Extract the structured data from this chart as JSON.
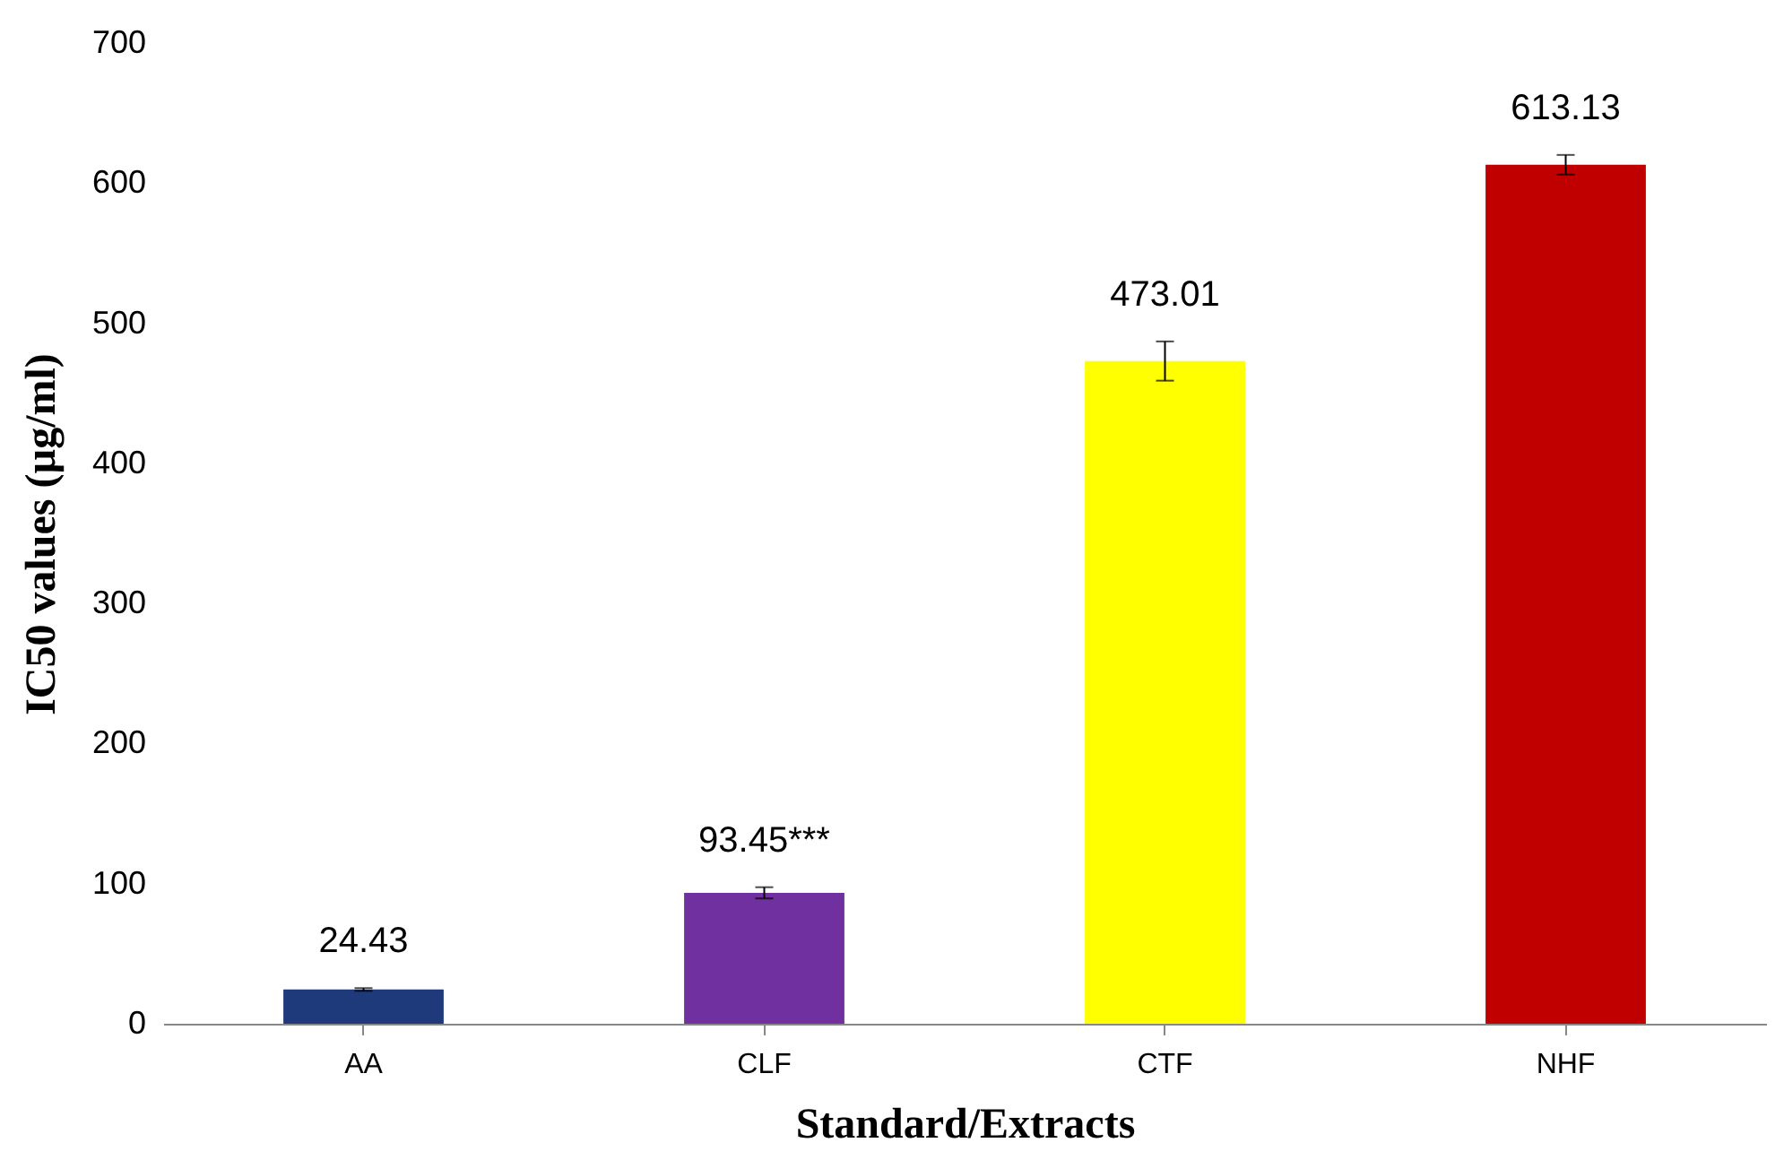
{
  "chart_data": {
    "type": "bar",
    "xlabel": "Standard/Extracts",
    "ylabel": "IC50 values (µg/ml)",
    "categories": [
      "AA",
      "CLF",
      "CTF",
      "NHF"
    ],
    "values": [
      24.43,
      93.45,
      473.01,
      613.13
    ],
    "colors": [
      "#1f3a7a",
      "#7030a0",
      "#ffff00",
      "#c00000"
    ],
    "errors": [
      1,
      4,
      14,
      7
    ],
    "value_labels": [
      "24.43",
      "93.45***",
      "473.01",
      "613.13"
    ],
    "ylim": [
      0,
      700
    ],
    "yticks": [
      0,
      100,
      200,
      300,
      400,
      500,
      600,
      700
    ],
    "grid": false
  }
}
